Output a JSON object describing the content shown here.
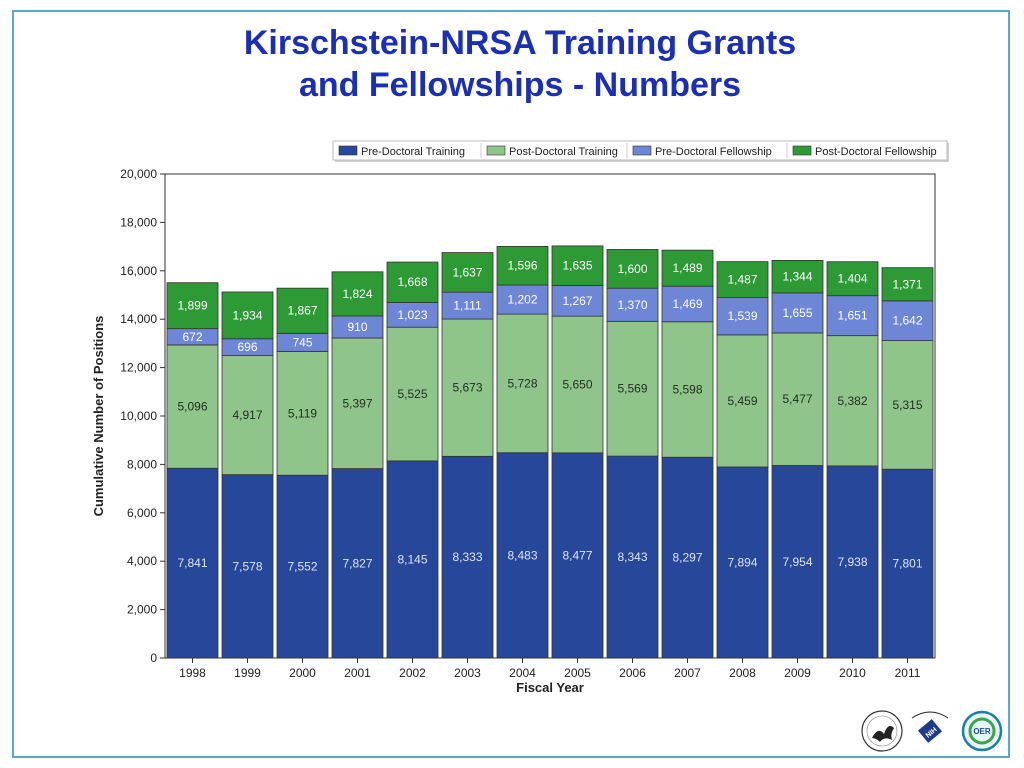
{
  "slide": {
    "title_line1": "Kirschstein-NRSA Training Grants",
    "title_line2": "and Fellowships - Numbers",
    "logos": [
      {
        "name": "hhs-seal-logo"
      },
      {
        "name": "nih-logo",
        "text": "NATIONAL INSTITUTES OF HEALTH"
      },
      {
        "name": "oer-logo",
        "text": "OER"
      }
    ]
  },
  "colors": {
    "pre_doctoral_training": "#27479a",
    "post_doctoral_training": "#8fc48b",
    "pre_doctoral_fellowship": "#6d86d6",
    "post_doctoral_fellowship": "#2e9a35",
    "title": "#1a2fb4",
    "frame": "#5aa7cf"
  },
  "chart_data": {
    "type": "bar",
    "stacked": true,
    "xlabel": "Fiscal Year",
    "ylabel": "Cumulative Number of Positions",
    "ylim": [
      0,
      20000
    ],
    "yticks": [
      "0",
      "2,000",
      "4,000",
      "6,000",
      "8,000",
      "10,000",
      "12,000",
      "14,000",
      "16,000",
      "18,000",
      "20,000"
    ],
    "legend_position": "top-right",
    "categories": [
      "1998",
      "1999",
      "2000",
      "2001",
      "2002",
      "2003",
      "2004",
      "2005",
      "2006",
      "2007",
      "2008",
      "2009",
      "2010",
      "2011"
    ],
    "series": [
      {
        "name": "Pre-Doctoral Training",
        "color": "#27479a",
        "label_color": "#dce4f5",
        "values": [
          7841,
          7578,
          7552,
          7827,
          8145,
          8333,
          8483,
          8477,
          8343,
          8297,
          7894,
          7954,
          7938,
          7801
        ],
        "labels": [
          "7,841",
          "7,578",
          "7,552",
          "7,827",
          "8,145",
          "8,333",
          "8,483",
          "8,477",
          "8,343",
          "8,297",
          "7,894",
          "7,954",
          "7,938",
          "7,801"
        ]
      },
      {
        "name": "Post-Doctoral Training",
        "color": "#8fc48b",
        "label_color": "#1f2f1f",
        "values": [
          5096,
          4917,
          5119,
          5397,
          5525,
          5673,
          5728,
          5650,
          5569,
          5598,
          5459,
          5477,
          5382,
          5315
        ],
        "labels": [
          "5,096",
          "4,917",
          "5,119",
          "5,397",
          "5,525",
          "5,673",
          "5,728",
          "5,650",
          "5,569",
          "5,598",
          "5,459",
          "5,477",
          "5,382",
          "5,315"
        ]
      },
      {
        "name": "Pre-Doctoral Fellowship",
        "color": "#6d86d6",
        "label_color": "#ffffff",
        "values": [
          672,
          696,
          745,
          910,
          1023,
          1111,
          1202,
          1267,
          1370,
          1469,
          1539,
          1655,
          1651,
          1642
        ],
        "labels": [
          "672",
          "696",
          "745",
          "910",
          "1,023",
          "1,111",
          "1,202",
          "1,267",
          "1,370",
          "1,469",
          "1,539",
          "1,655",
          "1,651",
          "1,642"
        ]
      },
      {
        "name": "Post-Doctoral Fellowship",
        "color": "#2e9a35",
        "label_color": "#ffffff",
        "values": [
          1899,
          1934,
          1867,
          1824,
          1668,
          1637,
          1596,
          1635,
          1600,
          1489,
          1487,
          1344,
          1404,
          1371
        ],
        "labels": [
          "1,899",
          "1,934",
          "1,867",
          "1,824",
          "1,668",
          "1,637",
          "1,596",
          "1,635",
          "1,600",
          "1,489",
          "1,487",
          "1,344",
          "1,404",
          "1,371"
        ]
      }
    ]
  }
}
